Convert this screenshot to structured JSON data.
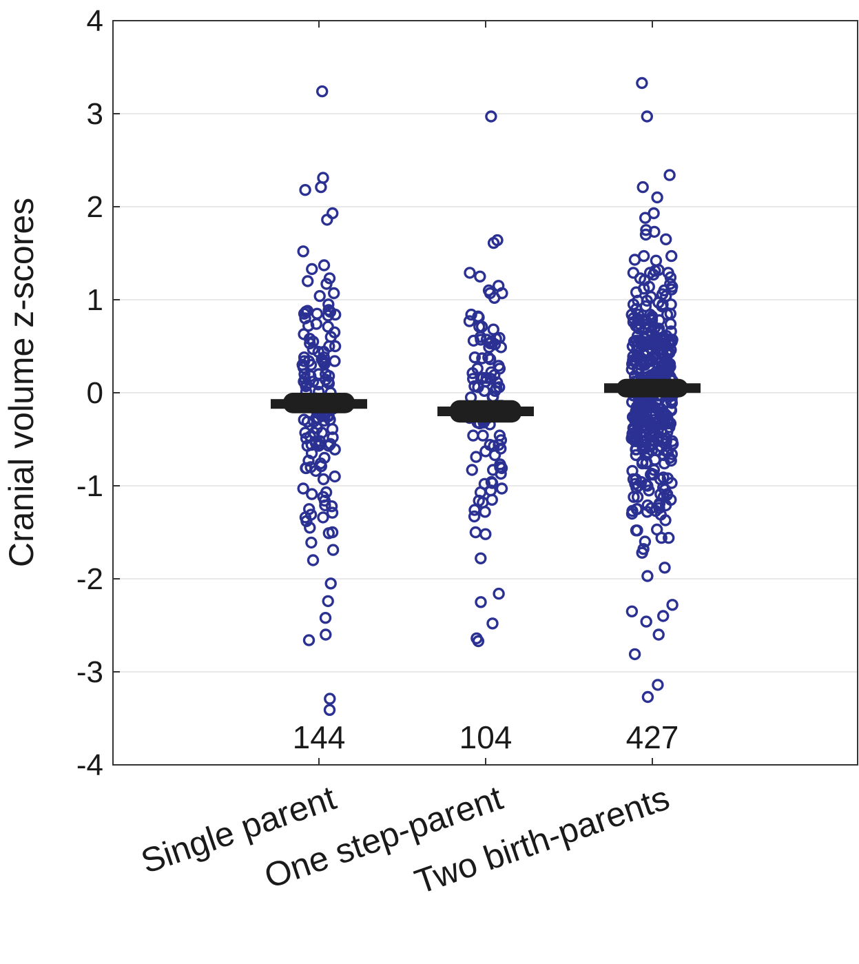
{
  "chart_data": {
    "type": "scatter",
    "title": "",
    "xlabel": "",
    "ylabel": "Cranial volume z-scores",
    "ylim": [
      -4,
      4
    ],
    "yticks": [
      -4,
      -3,
      -2,
      -1,
      0,
      1,
      2,
      3,
      4
    ],
    "ytick_labels": [
      "-4",
      "-3",
      "-2",
      "-1",
      "0",
      "1",
      "2",
      "3",
      "4"
    ],
    "grid": true,
    "legend": "none",
    "colors": {
      "points": "#2b3192",
      "median": "#1f1f1f",
      "grid": "#d9d9d9",
      "axis": "#333333"
    },
    "categories": [
      "Single parent",
      "One step-parent",
      "Two birth-parents"
    ],
    "counts": [
      "144",
      "104",
      "427"
    ],
    "series": [
      {
        "name": "Single parent",
        "n": 144,
        "median": -0.12,
        "box": [
          -0.22,
          0.0
        ],
        "outliers": [
          3.24,
          2.31,
          2.21,
          2.18,
          1.93,
          1.86,
          1.52,
          1.37,
          1.33,
          1.23,
          1.17,
          1.07,
          1.04,
          -1.22,
          -1.25,
          -1.38,
          -1.45,
          -1.5,
          -1.51,
          -1.61,
          -1.8,
          -2.05,
          -2.24,
          -2.42,
          -2.6,
          -2.66,
          -3.29,
          -3.41
        ]
      },
      {
        "name": "One step-parent",
        "n": 104,
        "median": -0.2,
        "box": [
          -0.32,
          -0.08
        ],
        "outliers": [
          2.97,
          1.64,
          1.61,
          1.29,
          1.15,
          1.07,
          1.02,
          -1.16,
          -1.26,
          -1.33,
          -1.5,
          -1.78,
          -2.16,
          -2.25,
          -2.48,
          -2.64,
          -2.67
        ]
      },
      {
        "name": "Two birth-parents",
        "n": 427,
        "median": 0.05,
        "box": [
          -0.05,
          0.15
        ],
        "outliers": [
          3.33,
          2.97,
          2.34,
          2.21,
          2.1,
          1.93,
          1.88,
          -1.88,
          -1.97,
          -2.28,
          -2.35,
          -2.4,
          -2.46,
          -2.6,
          -2.81,
          -3.14,
          -3.27
        ]
      }
    ]
  }
}
